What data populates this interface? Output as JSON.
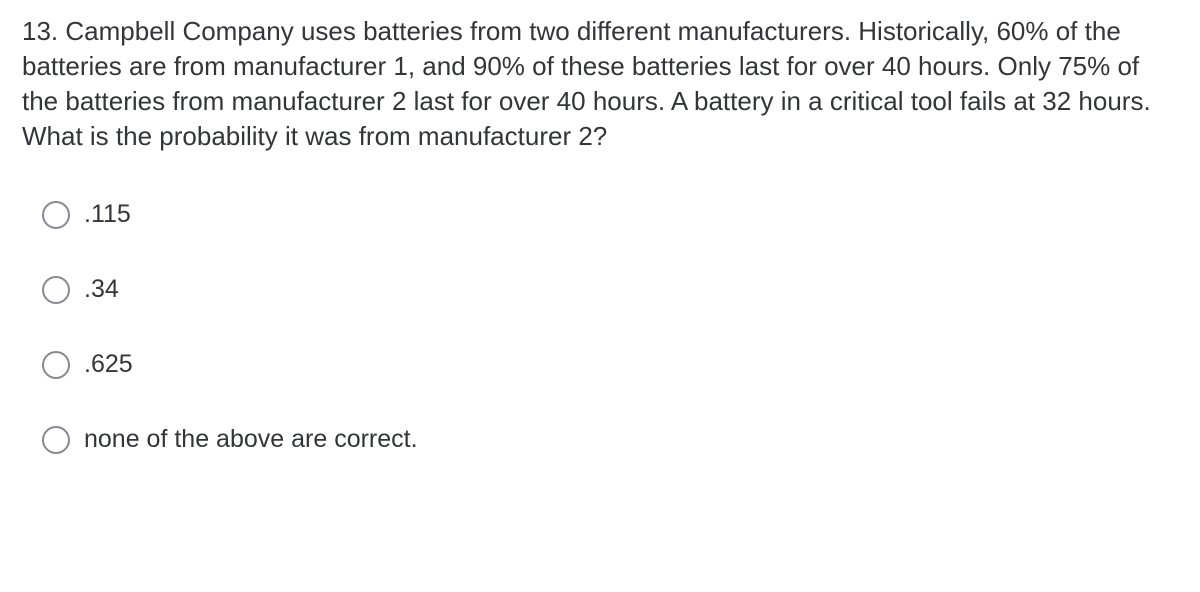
{
  "question": {
    "number": "13.",
    "text": "Campbell Company uses batteries from two different manufacturers. Historically, 60% of the batteries are from manufacturer 1, and 90% of these batteries last for over 40 hours. Only 75% of the batteries from manufacturer 2 last for over 40 hours. A battery in a critical tool fails at 32 hours. What is the probability it was from manufacturer 2?"
  },
  "options": [
    {
      "label": ".115"
    },
    {
      "label": ".34"
    },
    {
      "label": ".625"
    },
    {
      "label": "none of the above are correct."
    }
  ],
  "style": {
    "text_color": "#333539",
    "radio_border_color": "#868a8f",
    "background_color": "#ffffff",
    "question_fontsize": 26,
    "option_fontsize": 25,
    "radio_size": 28
  }
}
